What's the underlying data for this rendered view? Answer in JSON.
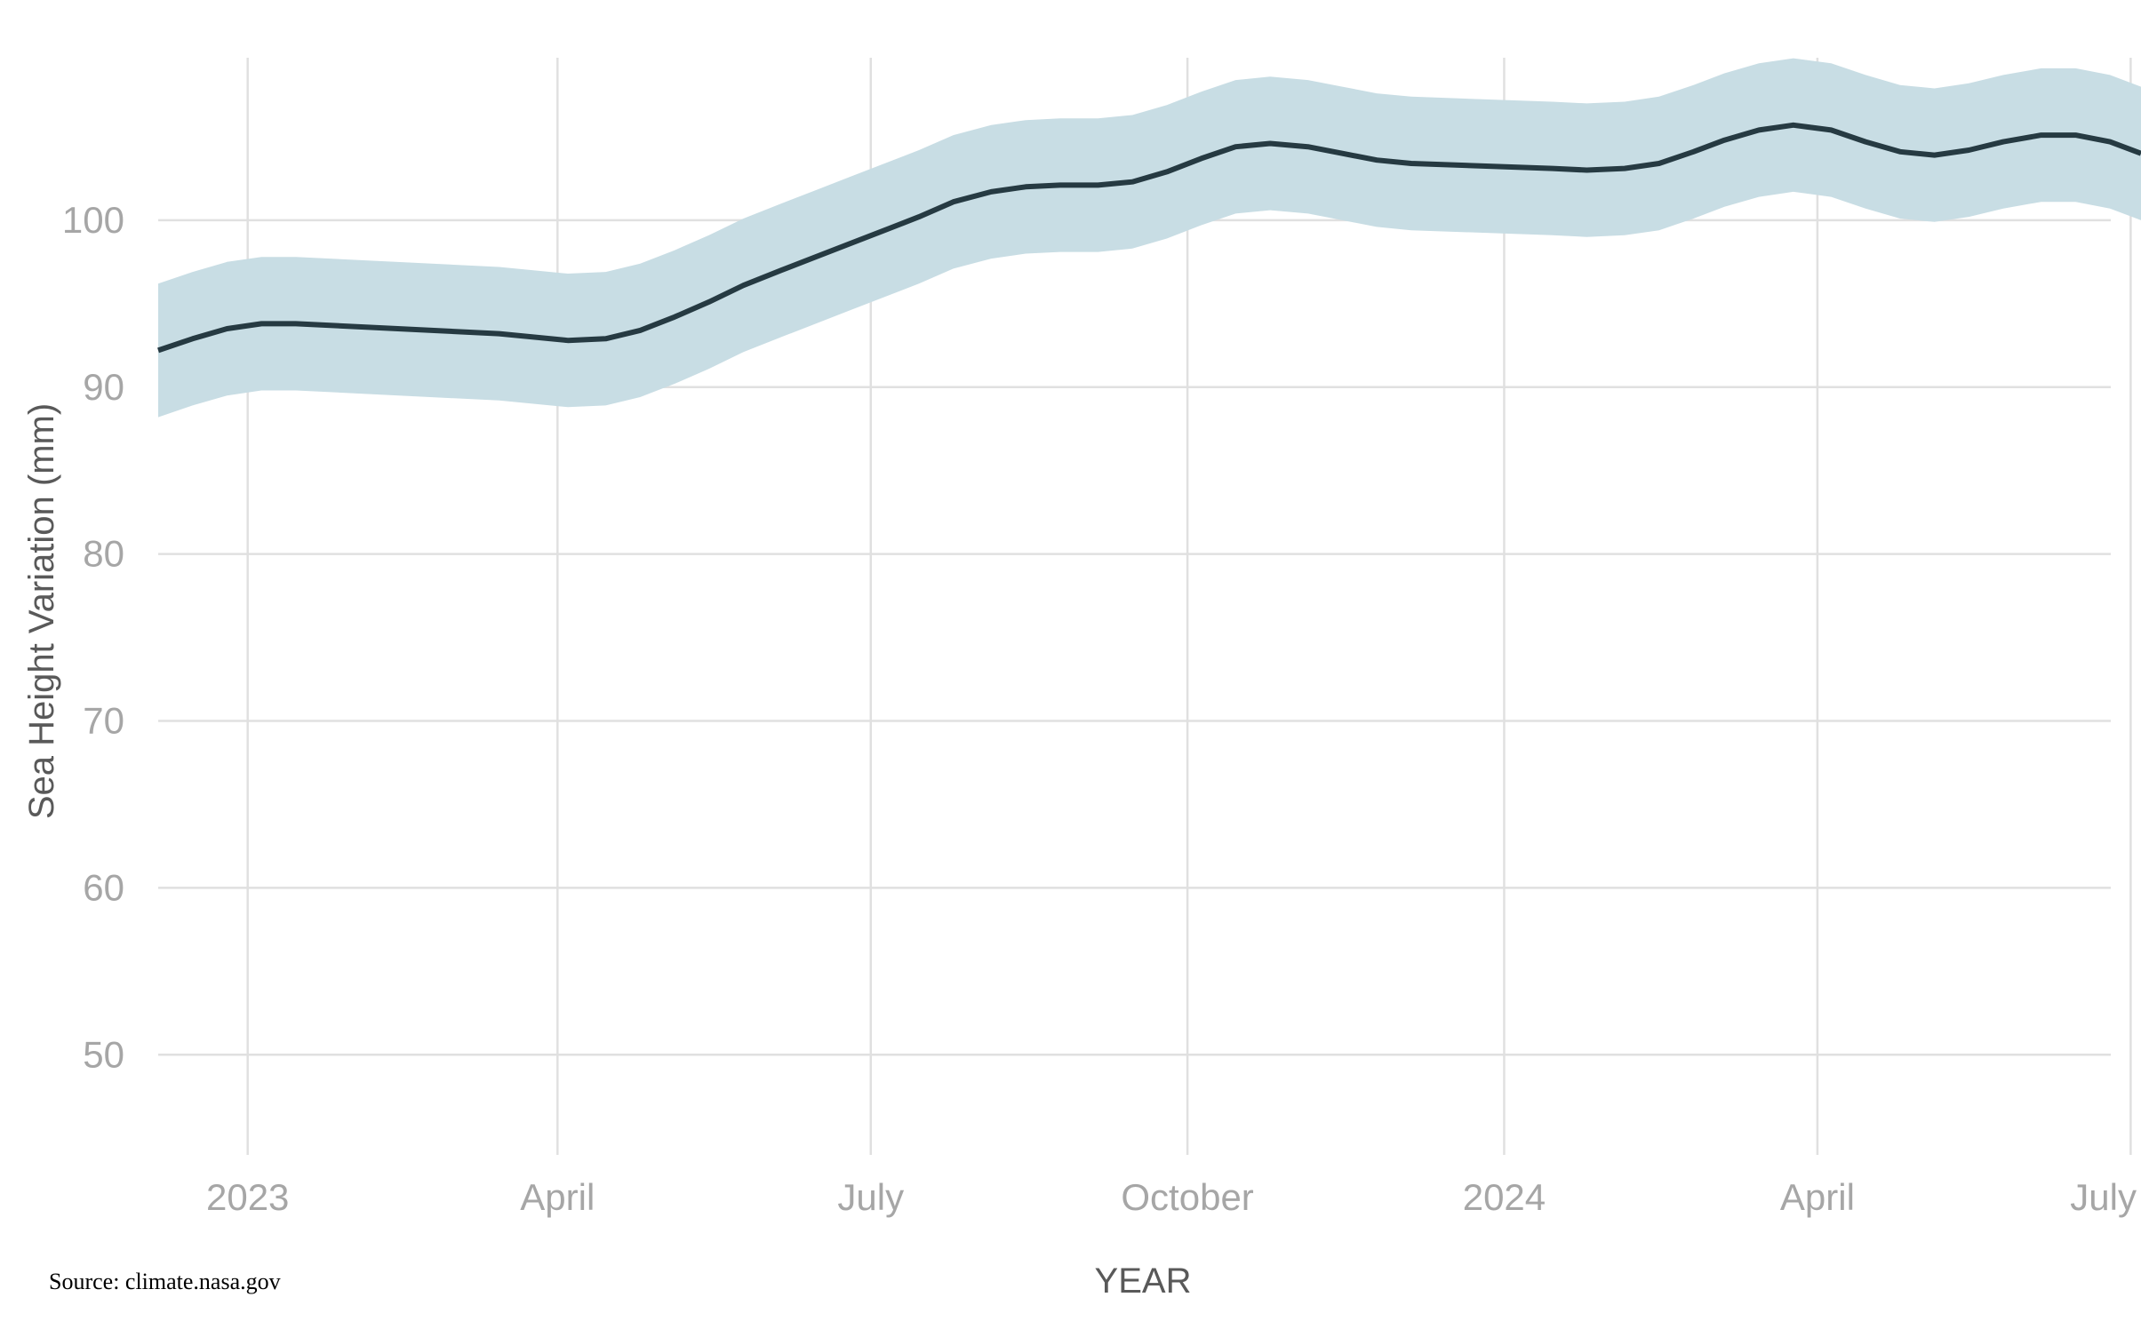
{
  "colors": {
    "band": "#c8dde4",
    "line": "#263a42",
    "grid": "#e0e0e0",
    "tick": "#a6a6a6",
    "axis_title": "#595959"
  },
  "source": "Source: climate.nasa.gov",
  "chart_data": {
    "type": "line",
    "title": "",
    "xlabel": "YEAR",
    "ylabel": "Sea Height Variation (mm)",
    "ylim": [
      44,
      110
    ],
    "xlim": [
      "2022-12-06",
      "2024-07-04"
    ],
    "grid": true,
    "y_ticks": [
      50,
      60,
      70,
      80,
      90,
      100
    ],
    "x_ticks": [
      {
        "date": "2023-01-01",
        "label": "2023"
      },
      {
        "date": "2023-04-01",
        "label": "April"
      },
      {
        "date": "2023-07-01",
        "label": "July"
      },
      {
        "date": "2023-10-01",
        "label": "October"
      },
      {
        "date": "2024-01-01",
        "label": "2024"
      },
      {
        "date": "2024-04-01",
        "label": "April"
      },
      {
        "date": "2024-07-01",
        "label": "July"
      }
    ],
    "series": [
      {
        "band_halfwidth": 4,
        "x": [
          "2022-12-06",
          "2022-12-16",
          "2022-12-26",
          "2023-01-05",
          "2023-01-15",
          "2023-03-15",
          "2023-04-04",
          "2023-04-15",
          "2023-04-25",
          "2023-05-05",
          "2023-05-15",
          "2023-05-25",
          "2023-06-05",
          "2023-06-15",
          "2023-06-25",
          "2023-07-05",
          "2023-07-15",
          "2023-07-25",
          "2023-08-05",
          "2023-08-15",
          "2023-08-25",
          "2023-09-05",
          "2023-09-15",
          "2023-09-25",
          "2023-10-05",
          "2023-10-15",
          "2023-10-25",
          "2023-11-05",
          "2023-11-15",
          "2023-11-25",
          "2023-12-05",
          "2024-01-15",
          "2024-01-25",
          "2024-02-05",
          "2024-02-15",
          "2024-02-25",
          "2024-03-05",
          "2024-03-15",
          "2024-03-25",
          "2024-04-05",
          "2024-04-15",
          "2024-04-25",
          "2024-05-05",
          "2024-05-15",
          "2024-05-25",
          "2024-06-05",
          "2024-06-15",
          "2024-06-25",
          "2024-07-04"
        ],
        "y": [
          92.2,
          92.9,
          93.5,
          93.8,
          93.8,
          93.2,
          92.8,
          92.9,
          93.4,
          94.2,
          95.1,
          96.1,
          97.0,
          97.8,
          98.6,
          99.4,
          100.2,
          101.1,
          101.7,
          102.0,
          102.1,
          102.1,
          102.3,
          102.9,
          103.7,
          104.4,
          104.6,
          104.4,
          104.0,
          103.6,
          103.4,
          103.1,
          103.0,
          103.1,
          103.4,
          104.1,
          104.8,
          105.4,
          105.7,
          105.4,
          104.7,
          104.1,
          103.9,
          104.2,
          104.7,
          105.1,
          105.1,
          104.7,
          104.0
        ]
      }
    ]
  }
}
